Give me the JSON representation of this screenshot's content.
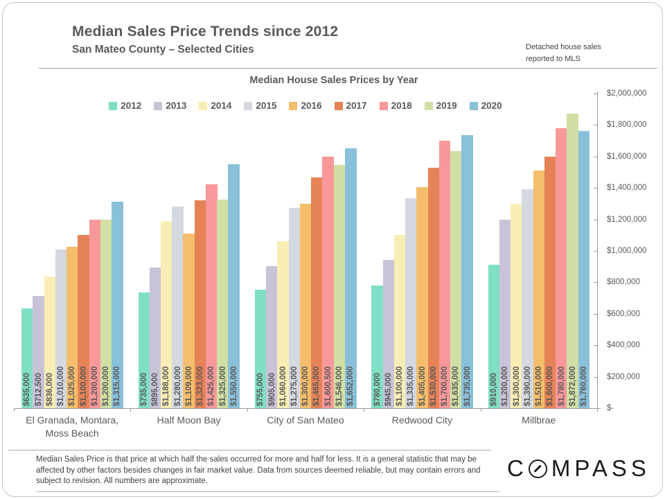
{
  "page": {
    "title": "Median Sales Price Trends since 2012",
    "subtitle": "San Mateo County – Selected Cities",
    "note_line1": "Detached house sales",
    "note_line2": "reported to MLS",
    "footnote": "Median Sales Price is that price at which half the sales occurred for more and half for less. It is a general statistic that may be affected by other factors besides changes in fair market value. Data from sources deemed reliable, but may contain errors and subject to revision.  All numbers are approximate.",
    "logo": {
      "left": "C",
      "right": "MPASS"
    }
  },
  "chart_data": {
    "type": "bar",
    "title": "Median House Sales Prices by Year",
    "legend_position": "top",
    "grid": false,
    "categories": [
      "El Granada, Montara, Moss Beach",
      "Half Moon Bay",
      "City of San Mateo",
      "Redwood City",
      "Millbrae"
    ],
    "series": [
      {
        "name": "2012",
        "color": "#7FDFC4",
        "values": [
          635000,
          735000,
          755000,
          780000,
          910000
        ]
      },
      {
        "name": "2013",
        "color": "#C9C3D8",
        "values": [
          712500,
          895000,
          905000,
          945000,
          1200000
        ]
      },
      {
        "name": "2014",
        "color": "#F8EEB5",
        "values": [
          836000,
          1188000,
          1060000,
          1100000,
          1300000
        ]
      },
      {
        "name": "2015",
        "color": "#D4D8E1",
        "values": [
          1010000,
          1280000,
          1275000,
          1335000,
          1390000
        ]
      },
      {
        "name": "2016",
        "color": "#F4BE6C",
        "values": [
          1025000,
          1109000,
          1300000,
          1405000,
          1510000
        ]
      },
      {
        "name": "2017",
        "color": "#E58357",
        "values": [
          1100000,
          1323000,
          1465000,
          1530000,
          1600000
        ]
      },
      {
        "name": "2018",
        "color": "#F9989A",
        "values": [
          1200000,
          1425000,
          1600500,
          1700000,
          1780000
        ]
      },
      {
        "name": "2019",
        "color": "#D0DFA4",
        "values": [
          1200000,
          1325000,
          1546000,
          1635000,
          1872000
        ]
      },
      {
        "name": "2020",
        "color": "#89C0DA",
        "values": [
          1315000,
          1550000,
          1652000,
          1735000,
          1760000
        ]
      }
    ],
    "ylim": [
      0,
      2000000
    ],
    "ytick_step": 200000,
    "yaxis_labels": [
      "$2,000,000",
      "$1,800,000",
      "$1,600,000",
      "$1,400,000",
      "$1,200,000",
      "$1,000,000",
      "$800,000",
      "$600,000",
      "$400,000",
      "$200,000",
      "$-"
    ],
    "value_label_format": "currency"
  }
}
